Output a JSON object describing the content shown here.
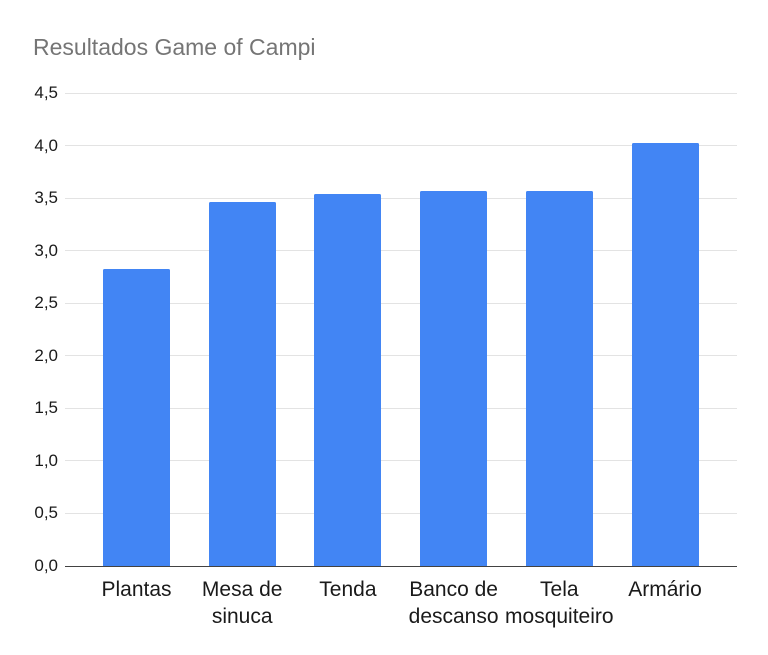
{
  "chart_data": {
    "type": "bar",
    "title": "Resultados Game of Campi",
    "categories": [
      "Plantas",
      "Mesa de sinuca",
      "Tenda",
      "Banco de descanso",
      "Tela mosquiteiro",
      "Armário"
    ],
    "values": [
      2.83,
      3.46,
      3.54,
      3.57,
      3.57,
      4.02
    ],
    "y_ticks": [
      "0,0",
      "0,5",
      "1,0",
      "1,5",
      "2,0",
      "2,5",
      "3,0",
      "3,5",
      "4,0",
      "4,5"
    ],
    "ylim": [
      0,
      4.5
    ],
    "y_step": 0.5,
    "grid": true,
    "legend": "none",
    "xlabel": "",
    "ylabel": "",
    "colors": {
      "bar": "#4285F4",
      "title": "#757575",
      "axis_text": "#1a1a1a",
      "gridline": "#e3e3e3",
      "baseline": "#424242",
      "background": "#ffffff"
    }
  }
}
